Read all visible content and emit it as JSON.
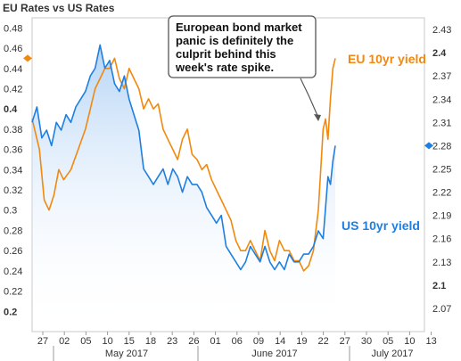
{
  "chart_data": {
    "type": "line",
    "title": "EU Rates vs US Rates",
    "xlabel": "",
    "ylabel": "",
    "left_axis": {
      "ylim": [
        0.18,
        0.49
      ],
      "ticks": [
        "0.48",
        "0.46",
        "0.44",
        "0.42",
        "0.4",
        "0.38",
        "0.36",
        "0.34",
        "0.32",
        "0.3",
        "0.28",
        "0.26",
        "0.24",
        "0.22",
        "0.2"
      ],
      "bold_ticks": [
        "0.4",
        "0.2"
      ]
    },
    "right_axis": {
      "ylim": [
        2.04,
        2.445
      ],
      "ticks": [
        "2.43",
        "2.4",
        "2.37",
        "2.34",
        "2.31",
        "2.28",
        "2.25",
        "2.22",
        "2.19",
        "2.16",
        "2.13",
        "2.1",
        "2.07"
      ],
      "bold_ticks": [
        "2.4",
        "2.1"
      ]
    },
    "x_ticks": [
      "27",
      "02",
      "05",
      "10",
      "15",
      "18",
      "23",
      "26",
      "01",
      "06",
      "09",
      "14",
      "19",
      "22",
      "27",
      "30",
      "05",
      "10",
      "13"
    ],
    "month_labels": [
      "May 2017",
      "June 2017",
      "July 2017"
    ],
    "series": [
      {
        "name": "EU 10yr yield",
        "axis": "left",
        "color": "#f0890e",
        "values": [
          [
            0,
            0.39
          ],
          [
            3,
            0.36
          ],
          [
            5,
            0.31
          ],
          [
            7,
            0.3
          ],
          [
            9,
            0.315
          ],
          [
            11,
            0.34
          ],
          [
            13,
            0.33
          ],
          [
            16,
            0.34
          ],
          [
            19,
            0.36
          ],
          [
            22,
            0.38
          ],
          [
            24,
            0.4
          ],
          [
            26,
            0.42
          ],
          [
            28,
            0.43
          ],
          [
            30,
            0.44
          ],
          [
            32,
            0.44
          ],
          [
            34,
            0.45
          ],
          [
            36,
            0.43
          ],
          [
            38,
            0.42
          ],
          [
            40,
            0.44
          ],
          [
            42,
            0.43
          ],
          [
            44,
            0.42
          ],
          [
            46,
            0.4
          ],
          [
            48,
            0.41
          ],
          [
            50,
            0.4
          ],
          [
            52,
            0.405
          ],
          [
            54,
            0.38
          ],
          [
            56,
            0.37
          ],
          [
            58,
            0.36
          ],
          [
            60,
            0.35
          ],
          [
            62,
            0.37
          ],
          [
            64,
            0.38
          ],
          [
            66,
            0.355
          ],
          [
            68,
            0.35
          ],
          [
            70,
            0.34
          ],
          [
            72,
            0.345
          ],
          [
            74,
            0.33
          ],
          [
            76,
            0.32
          ],
          [
            78,
            0.31
          ],
          [
            80,
            0.3
          ],
          [
            82,
            0.29
          ],
          [
            84,
            0.27
          ],
          [
            86,
            0.26
          ],
          [
            88,
            0.26
          ],
          [
            90,
            0.27
          ],
          [
            92,
            0.26
          ],
          [
            94,
            0.25
          ],
          [
            96,
            0.28
          ],
          [
            98,
            0.26
          ],
          [
            100,
            0.25
          ],
          [
            102,
            0.27
          ],
          [
            104,
            0.26
          ],
          [
            106,
            0.26
          ],
          [
            108,
            0.25
          ],
          [
            110,
            0.25
          ],
          [
            112,
            0.24
          ],
          [
            114,
            0.245
          ],
          [
            116,
            0.26
          ],
          [
            118,
            0.3
          ],
          [
            120,
            0.38
          ],
          [
            121,
            0.39
          ],
          [
            122,
            0.37
          ],
          [
            123,
            0.41
          ],
          [
            124,
            0.44
          ],
          [
            125,
            0.45
          ]
        ]
      },
      {
        "name": "US 10yr yield",
        "axis": "right",
        "color": "#1f7fe0",
        "values": [
          [
            0,
            2.31
          ],
          [
            2,
            2.33
          ],
          [
            4,
            2.29
          ],
          [
            6,
            2.3
          ],
          [
            8,
            2.28
          ],
          [
            10,
            2.31
          ],
          [
            12,
            2.3
          ],
          [
            14,
            2.32
          ],
          [
            16,
            2.31
          ],
          [
            18,
            2.33
          ],
          [
            20,
            2.34
          ],
          [
            22,
            2.35
          ],
          [
            24,
            2.37
          ],
          [
            26,
            2.38
          ],
          [
            28,
            2.41
          ],
          [
            30,
            2.38
          ],
          [
            32,
            2.39
          ],
          [
            34,
            2.36
          ],
          [
            36,
            2.35
          ],
          [
            38,
            2.37
          ],
          [
            40,
            2.34
          ],
          [
            42,
            2.32
          ],
          [
            44,
            2.3
          ],
          [
            46,
            2.25
          ],
          [
            48,
            2.24
          ],
          [
            50,
            2.23
          ],
          [
            52,
            2.24
          ],
          [
            54,
            2.25
          ],
          [
            56,
            2.23
          ],
          [
            58,
            2.25
          ],
          [
            60,
            2.24
          ],
          [
            62,
            2.22
          ],
          [
            64,
            2.24
          ],
          [
            66,
            2.23
          ],
          [
            68,
            2.23
          ],
          [
            70,
            2.22
          ],
          [
            72,
            2.2
          ],
          [
            74,
            2.19
          ],
          [
            76,
            2.18
          ],
          [
            78,
            2.19
          ],
          [
            80,
            2.15
          ],
          [
            82,
            2.14
          ],
          [
            84,
            2.13
          ],
          [
            86,
            2.12
          ],
          [
            88,
            2.13
          ],
          [
            90,
            2.15
          ],
          [
            92,
            2.14
          ],
          [
            94,
            2.13
          ],
          [
            96,
            2.15
          ],
          [
            98,
            2.13
          ],
          [
            100,
            2.12
          ],
          [
            102,
            2.13
          ],
          [
            104,
            2.12
          ],
          [
            106,
            2.14
          ],
          [
            108,
            2.13
          ],
          [
            110,
            2.13
          ],
          [
            112,
            2.14
          ],
          [
            114,
            2.14
          ],
          [
            116,
            2.15
          ],
          [
            118,
            2.17
          ],
          [
            120,
            2.16
          ],
          [
            122,
            2.24
          ],
          [
            123,
            2.23
          ],
          [
            124,
            2.26
          ],
          [
            125,
            2.28
          ]
        ]
      }
    ],
    "annotation": "European bond market panic is definitely the culprit behind this week's rate spike."
  }
}
